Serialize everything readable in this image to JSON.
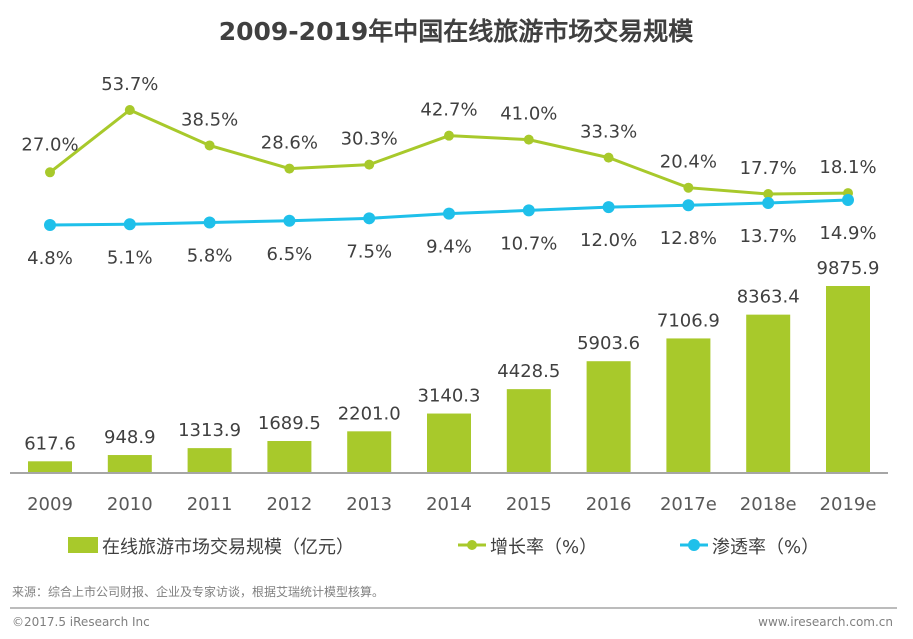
{
  "chart_data": {
    "type": "bar",
    "title": "2009-2019年中国在线旅游市场交易规模",
    "categories": [
      "2009",
      "2010",
      "2011",
      "2012",
      "2013",
      "2014",
      "2015",
      "2016",
      "2017e",
      "2018e",
      "2019e"
    ],
    "series": [
      {
        "name": "在线旅游市场交易规模（亿元）",
        "type": "bar",
        "color": "#a8c92b",
        "values": [
          617.6,
          948.9,
          1313.9,
          1689.5,
          2201.0,
          3140.3,
          4428.5,
          5903.6,
          7106.9,
          8363.4,
          9875.9
        ],
        "labels": [
          "617.6",
          "948.9",
          "1313.9",
          "1689.5",
          "2201.0",
          "3140.3",
          "4428.5",
          "5903.6",
          "7106.9",
          "8363.4",
          "9875.9"
        ]
      },
      {
        "name": "增长率（%）",
        "type": "line",
        "color": "#a8c92b",
        "values": [
          27.0,
          53.7,
          38.5,
          28.6,
          30.3,
          42.7,
          41.0,
          33.3,
          20.4,
          17.7,
          18.1
        ],
        "labels": [
          "27.0%",
          "53.7%",
          "38.5%",
          "28.6%",
          "30.3%",
          "42.7%",
          "41.0%",
          "33.3%",
          "20.4%",
          "17.7%",
          "18.1%"
        ]
      },
      {
        "name": "渗透率（%）",
        "type": "line",
        "color": "#1fc0ea",
        "values": [
          4.8,
          5.1,
          5.8,
          6.5,
          7.5,
          9.4,
          10.7,
          12.0,
          12.8,
          13.7,
          14.9
        ],
        "labels": [
          "4.8%",
          "5.1%",
          "5.8%",
          "6.5%",
          "7.5%",
          "9.4%",
          "10.7%",
          "12.0%",
          "12.8%",
          "13.7%",
          "14.9%"
        ]
      }
    ],
    "xlabel": "",
    "ylabel": "",
    "ylim": [
      0,
      10000
    ],
    "grid": false,
    "legend": "bottom"
  },
  "legend": {
    "bar_label": "在线旅游市场交易规模（亿元）",
    "growth_label": "增长率（%）",
    "penetration_label": "渗透率（%）"
  },
  "source": "来源：综合上市公司财报、企业及专家访谈，根据艾瑞统计模型核算。",
  "footer": {
    "copyright": "©2017.5 iResearch Inc",
    "website": "www.iresearch.com.cn"
  }
}
